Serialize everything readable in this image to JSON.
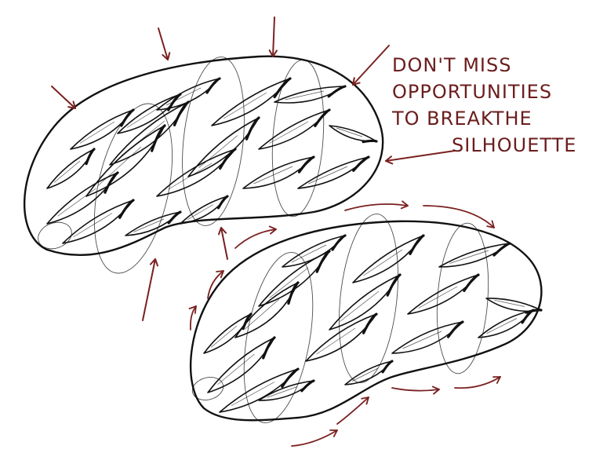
{
  "annotation": {
    "lines": [
      "DON'T MISS",
      "OPPORTUNITIES",
      "TO BREAKTHE",
      "SILHOUETTE"
    ]
  },
  "colors": {
    "ink": "#111111",
    "annotation_ink": "#6b1d1d",
    "arrow_ink": "#7a2020",
    "background": "#ffffff"
  },
  "shapes": {
    "top_form": "kidney-shaped form covered in overlapping leaf scales",
    "bottom_form": "kidney-shaped form with leaf scales breaking the outline"
  }
}
